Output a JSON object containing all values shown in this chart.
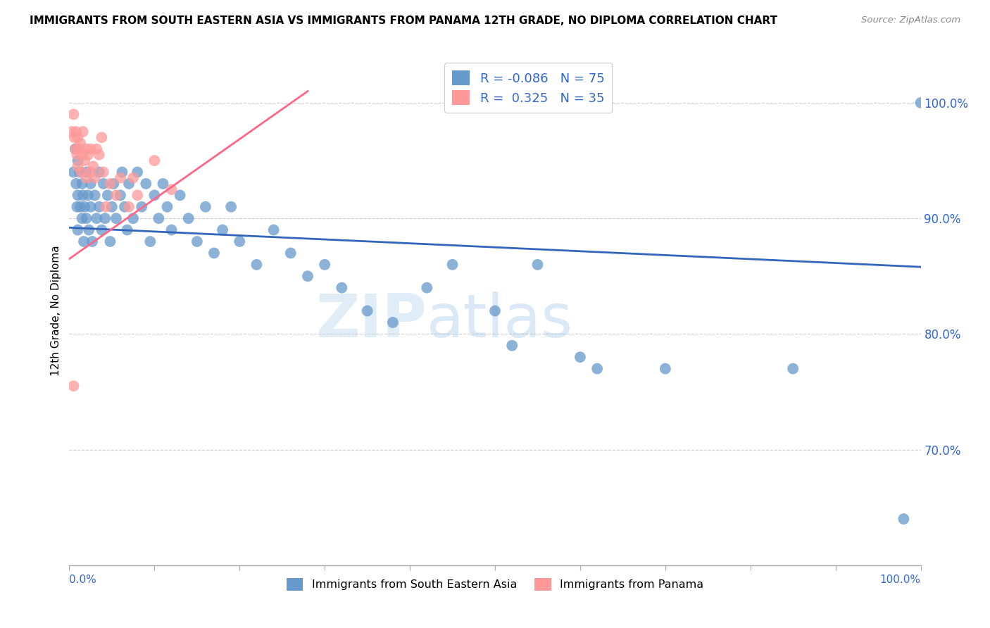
{
  "title": "IMMIGRANTS FROM SOUTH EASTERN ASIA VS IMMIGRANTS FROM PANAMA 12TH GRADE, NO DIPLOMA CORRELATION CHART",
  "source": "Source: ZipAtlas.com",
  "ylabel": "12th Grade, No Diploma",
  "legend_label1": "Immigrants from South Eastern Asia",
  "legend_label2": "Immigrants from Panama",
  "R1": "-0.086",
  "N1": "75",
  "R2": "0.325",
  "N2": "35",
  "watermark_left": "ZIP",
  "watermark_right": "atlas",
  "blue_color": "#6699CC",
  "pink_color": "#FF9999",
  "blue_line_color": "#3366BB",
  "pink_line_color": "#FF6688",
  "axis_color": "#3366CC",
  "grid_color": "#cccccc",
  "ytick_labels": [
    "100.0%",
    "90.0%",
    "80.0%",
    "70.0%"
  ],
  "ytick_positions": [
    1.0,
    0.9,
    0.8,
    0.7
  ],
  "xlim": [
    0.0,
    1.0
  ],
  "ylim": [
    0.6,
    1.04
  ],
  "blue_trend_x": [
    0.0,
    1.0
  ],
  "blue_trend_y": [
    0.892,
    0.858
  ],
  "pink_trend_x": [
    0.0,
    0.28
  ],
  "pink_trend_y": [
    0.865,
    1.01
  ],
  "blue_scatter_x": [
    0.005,
    0.007,
    0.008,
    0.009,
    0.01,
    0.01,
    0.01,
    0.012,
    0.013,
    0.015,
    0.015,
    0.016,
    0.017,
    0.018,
    0.02,
    0.02,
    0.022,
    0.023,
    0.025,
    0.025,
    0.027,
    0.03,
    0.032,
    0.035,
    0.035,
    0.038,
    0.04,
    0.042,
    0.045,
    0.048,
    0.05,
    0.052,
    0.055,
    0.06,
    0.062,
    0.065,
    0.068,
    0.07,
    0.075,
    0.08,
    0.085,
    0.09,
    0.095,
    0.1,
    0.105,
    0.11,
    0.115,
    0.12,
    0.13,
    0.14,
    0.15,
    0.16,
    0.17,
    0.18,
    0.19,
    0.2,
    0.22,
    0.24,
    0.26,
    0.28,
    0.3,
    0.32,
    0.35,
    0.38,
    0.42,
    0.45,
    0.5,
    0.52,
    0.55,
    0.6,
    0.62,
    0.7,
    0.85,
    0.98,
    1.0
  ],
  "blue_scatter_y": [
    0.94,
    0.96,
    0.93,
    0.91,
    0.95,
    0.92,
    0.89,
    0.94,
    0.91,
    0.93,
    0.9,
    0.92,
    0.88,
    0.91,
    0.94,
    0.9,
    0.92,
    0.89,
    0.93,
    0.91,
    0.88,
    0.92,
    0.9,
    0.94,
    0.91,
    0.89,
    0.93,
    0.9,
    0.92,
    0.88,
    0.91,
    0.93,
    0.9,
    0.92,
    0.94,
    0.91,
    0.89,
    0.93,
    0.9,
    0.94,
    0.91,
    0.93,
    0.88,
    0.92,
    0.9,
    0.93,
    0.91,
    0.89,
    0.92,
    0.9,
    0.88,
    0.91,
    0.87,
    0.89,
    0.91,
    0.88,
    0.86,
    0.89,
    0.87,
    0.85,
    0.86,
    0.84,
    0.82,
    0.81,
    0.84,
    0.86,
    0.82,
    0.79,
    0.86,
    0.78,
    0.77,
    0.77,
    0.77,
    0.64,
    1.0
  ],
  "pink_scatter_x": [
    0.003,
    0.005,
    0.006,
    0.007,
    0.008,
    0.009,
    0.01,
    0.01,
    0.012,
    0.013,
    0.014,
    0.015,
    0.016,
    0.018,
    0.02,
    0.02,
    0.022,
    0.025,
    0.025,
    0.028,
    0.03,
    0.032,
    0.035,
    0.038,
    0.04,
    0.043,
    0.048,
    0.055,
    0.06,
    0.07,
    0.075,
    0.08,
    0.1,
    0.12,
    0.005
  ],
  "pink_scatter_y": [
    0.975,
    0.99,
    0.97,
    0.96,
    0.975,
    0.955,
    0.97,
    0.945,
    0.96,
    0.965,
    0.94,
    0.955,
    0.975,
    0.95,
    0.96,
    0.935,
    0.955,
    0.94,
    0.96,
    0.945,
    0.935,
    0.96,
    0.955,
    0.97,
    0.94,
    0.91,
    0.93,
    0.92,
    0.935,
    0.91,
    0.935,
    0.92,
    0.95,
    0.925,
    0.755
  ]
}
